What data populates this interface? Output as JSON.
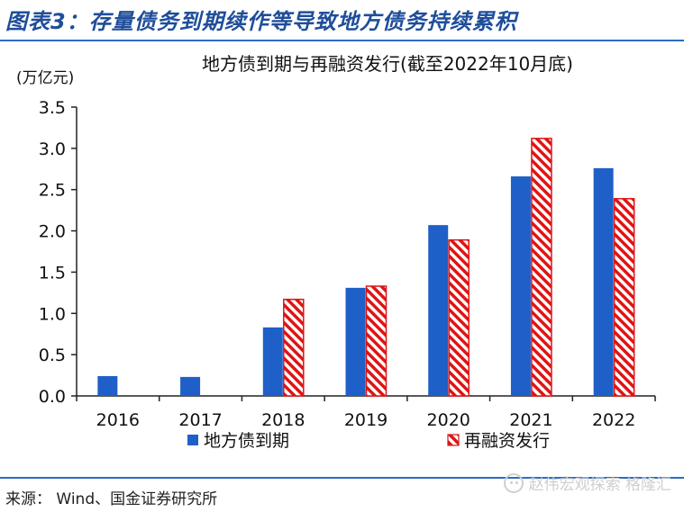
{
  "header": {
    "title": "图表3：存量债务到期续作等导致地方债务持续累积"
  },
  "chart_data": {
    "type": "bar",
    "title": "地方债到期与再融资发行(截至2022年10月底)",
    "ylabel": "(万亿元)",
    "xlabel": "",
    "ylim": [
      0,
      3.5
    ],
    "yticks": [
      "0.0",
      "0.5",
      "1.0",
      "1.5",
      "2.0",
      "2.5",
      "3.0",
      "3.5"
    ],
    "categories": [
      "2016",
      "2017",
      "2018",
      "2019",
      "2020",
      "2021",
      "2022"
    ],
    "series": [
      {
        "name": "地方债到期",
        "color": "#1f5fc8",
        "pattern": "solid",
        "values": [
          0.24,
          0.23,
          0.83,
          1.31,
          2.07,
          2.66,
          2.76
        ]
      },
      {
        "name": "再融资发行",
        "color": "#e01414",
        "pattern": "hatch",
        "values": [
          null,
          null,
          1.17,
          1.33,
          1.89,
          3.12,
          2.39
        ]
      }
    ],
    "legend_position": "bottom",
    "grid": false
  },
  "footer": {
    "source": "来源： Wind、国金证券研究所",
    "watermark": "赵伟宏观探索 格隆汇"
  }
}
